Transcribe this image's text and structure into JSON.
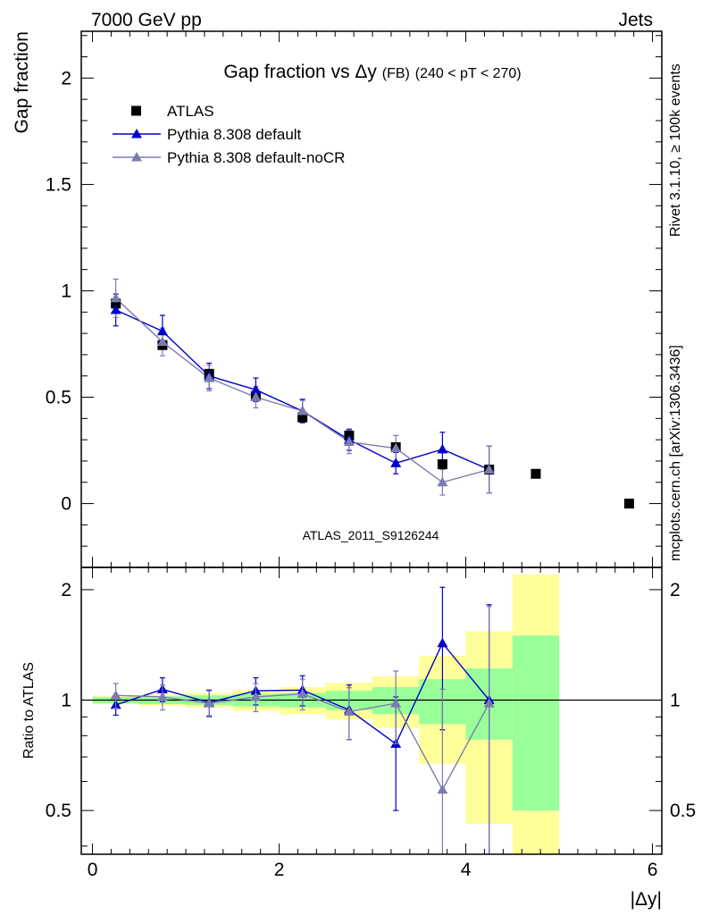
{
  "header": {
    "left": "7000 GeV pp",
    "right": "Jets"
  },
  "side": {
    "rivet": "Rivet 3.1.10, ≥ 100k events",
    "mcplots": "mcplots.cern.ch [arXiv:1306.3436]"
  },
  "watermark": "ATLAS_2011_S9126244",
  "chart_data": {
    "type": "line",
    "title": "Gap fraction vs Δy",
    "title_suffix": "(FB)",
    "title_cut": "(240 < pT < 270)",
    "xlabel": "|Δy|",
    "ylabel": "Gap fraction",
    "ratio_ylabel": "Ratio to ATLAS",
    "xlim": [
      -0.12,
      6.1
    ],
    "ylim": [
      -0.3,
      2.22
    ],
    "ratio_ylim": [
      0.38,
      2.3
    ],
    "x_ticks": [
      0,
      2,
      4,
      6
    ],
    "y_ticks": [
      0,
      0.5,
      1,
      1.5,
      2
    ],
    "ratio_ticks": [
      0.5,
      1,
      2
    ],
    "grid": false,
    "legend_position": "top-left",
    "series": [
      {
        "name": "ATLAS",
        "color": "#000000",
        "marker": "square",
        "x": [
          0.25,
          0.75,
          1.25,
          1.75,
          2.25,
          2.75,
          3.25,
          3.75,
          4.25,
          4.75,
          5.75
        ],
        "y": [
          0.94,
          0.745,
          0.61,
          0.505,
          0.405,
          0.32,
          0.265,
          0.185,
          0.16,
          0.14,
          0.0
        ]
      },
      {
        "name": "Pythia 8.308 default",
        "color": "#0000cc",
        "marker": "triangle",
        "x": [
          0.25,
          0.75,
          1.25,
          1.75,
          2.25,
          2.75,
          3.25,
          3.75,
          4.25
        ],
        "y": [
          0.91,
          0.81,
          0.6,
          0.535,
          0.435,
          0.3,
          0.19,
          0.255,
          0.16
        ],
        "yerr": [
          0.075,
          0.075,
          0.06,
          0.055,
          0.055,
          0.05,
          0.05,
          0.08,
          0.11
        ],
        "ratio": [
          0.97,
          1.07,
          0.985,
          1.06,
          1.065,
          0.94,
          0.76,
          1.43,
          1.0
        ],
        "ratio_err": [
          0.06,
          0.08,
          0.08,
          0.09,
          0.1,
          0.16,
          0.26,
          0.6,
          0.82
        ]
      },
      {
        "name": "Pythia 8.308 default-noCR",
        "color": "#7b7bb0",
        "marker": "triangle",
        "x": [
          0.25,
          0.75,
          1.25,
          1.75,
          2.25,
          2.75,
          3.25,
          3.75,
          4.25
        ],
        "y": [
          0.965,
          0.76,
          0.59,
          0.5,
          0.435,
          0.29,
          0.26,
          0.1,
          0.16
        ],
        "yerr": [
          0.09,
          0.065,
          0.06,
          0.05,
          0.05,
          0.055,
          0.06,
          0.06,
          0.11
        ],
        "ratio": [
          1.03,
          1.02,
          0.98,
          1.02,
          1.04,
          0.93,
          0.98,
          0.57,
          0.98
        ],
        "ratio_err": [
          0.08,
          0.08,
          0.08,
          0.09,
          0.1,
          0.15,
          0.22,
          0.5,
          0.82
        ]
      }
    ],
    "ratio_bands": [
      {
        "x0": 0,
        "x1": 0.5,
        "y_lo": [
          0.98,
          0.975
        ],
        "y_hi": [
          1.02,
          1.025
        ]
      },
      {
        "x0": 0.5,
        "x1": 1.0,
        "y_lo": [
          0.975,
          0.965
        ],
        "y_hi": [
          1.025,
          1.035
        ]
      },
      {
        "x0": 1.0,
        "x1": 1.5,
        "y_lo": [
          0.97,
          0.955
        ],
        "y_hi": [
          1.03,
          1.045
        ]
      },
      {
        "x0": 1.5,
        "x1": 2.0,
        "y_lo": [
          0.96,
          0.935
        ],
        "y_hi": [
          1.04,
          1.065
        ]
      },
      {
        "x0": 2.0,
        "x1": 2.5,
        "y_lo": [
          0.955,
          0.915
        ],
        "y_hi": [
          1.045,
          1.085
        ]
      },
      {
        "x0": 2.5,
        "x1": 3.0,
        "y_lo": [
          0.94,
          0.885
        ],
        "y_hi": [
          1.06,
          1.115
        ]
      },
      {
        "x0": 3.0,
        "x1": 3.5,
        "y_lo": [
          0.915,
          0.84
        ],
        "y_hi": [
          1.085,
          1.16
        ]
      },
      {
        "x0": 3.5,
        "x1": 4.0,
        "y_lo": [
          0.86,
          0.67
        ],
        "y_hi": [
          1.14,
          1.32
        ]
      },
      {
        "x0": 4.0,
        "x1": 4.5,
        "y_lo": [
          0.78,
          0.46
        ],
        "y_hi": [
          1.22,
          1.54
        ]
      },
      {
        "x0": 4.5,
        "x1": 5.0,
        "y_lo": [
          0.5,
          0.0
        ],
        "y_hi": [
          1.5,
          2.2
        ]
      }
    ],
    "band_colors": {
      "inner": "#99ff99",
      "outer": "#ffff99"
    }
  }
}
